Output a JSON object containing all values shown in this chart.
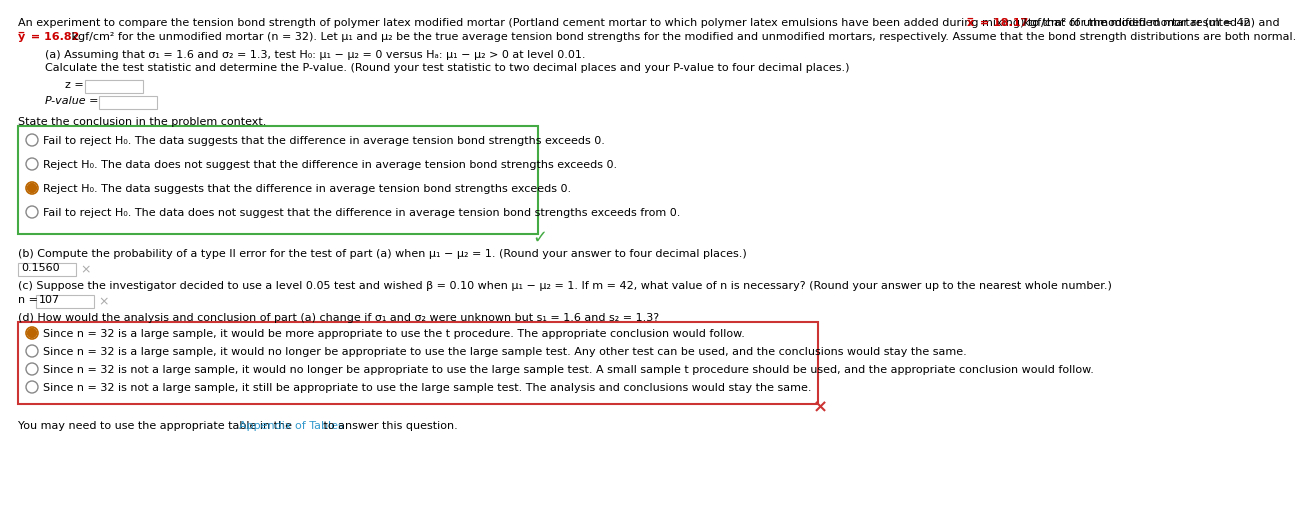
{
  "bg_color": "#ffffff",
  "text_color": "#000000",
  "red_bold": "#cc0000",
  "link_color": "#3399cc",
  "box_green": "#44aa44",
  "box_red": "#cc3333",
  "radio_orange": "#bb6600",
  "radio_gray": "#888888",
  "check_green": "#44aa44",
  "x_red": "#cc3333",
  "x_gray": "#aaaaaa",
  "line1a": "An experiment to compare the tension bond strength of polymer latex modified mortar (Portland cement mortar to which polymer latex emulsions have been added during mixing) to that of unmodified mortar resulted in ",
  "line1b": "x = 18.17",
  "line1c": " kgf/cm² for the modified mortar (m = 42) and",
  "line2a": "y = 16.82",
  "line2b": " kgf/cm² for the unmodified mortar (n = 32). Let μ₁ and μ₂ be the true average tension bond strengths for the modified and unmodified mortars, respectively. Assume that the bond strength distributions are both normal.",
  "part_a1": "(a) Assuming that σ₁ = 1.6 and σ₂ = 1.3, test H₀: μ₁ − μ₂ = 0 versus Hₐ: μ₁ − μ₂ > 0 at level 0.01.",
  "part_a2": "Calculate the test statistic and determine the P-value. (Round your test statistic to two decimal places and your P-value to four decimal places.)",
  "z_label": "z =",
  "pval_label": "P-value =",
  "state_conc": "State the conclusion in the problem context.",
  "opt1": "Fail to reject H₀. The data suggests that the difference in average tension bond strengths exceeds 0.",
  "opt2": "Reject H₀. The data does not suggest that the difference in average tension bond strengths exceeds 0.",
  "opt3": "Reject H₀. The data suggests that the difference in average tension bond strengths exceeds 0.",
  "opt4": "Fail to reject H₀. The data does not suggest that the difference in average tension bond strengths exceeds from 0.",
  "part_b": "(b) Compute the probability of a type II error for the test of part (a) when μ₁ − μ₂ = 1. (Round your answer to four decimal places.)",
  "part_b_ans": "0.1560",
  "part_c": "(c) Suppose the investigator decided to use a level 0.05 test and wished β = 0.10 when μ₁ − μ₂ = 1. If m = 42, what value of n is necessary? (Round your answer up to the nearest whole number.)",
  "part_c_n_label": "n = ",
  "part_c_ans": "107",
  "part_d": "(d) How would the analysis and conclusion of part (a) change if σ₁ and σ₂ were unknown but s₁ = 1.6 and s₂ = 1.3?",
  "opt_d1": "Since n = 32 is a large sample, it would be more appropriate to use the t procedure. The appropriate conclusion would follow.",
  "opt_d2": "Since n = 32 is a large sample, it would no longer be appropriate to use the large sample test. Any other test can be used, and the conclusions would stay the same.",
  "opt_d3": "Since n = 32 is not a large sample, it would no longer be appropriate to use the large sample test. A small sample t procedure should be used, and the appropriate conclusion would follow.",
  "opt_d4": "Since n = 32 is not a large sample, it still be appropriate to use the large sample test. The analysis and conclusions would stay the same.",
  "footer_pre": "You may need to use the appropriate table in the ",
  "footer_link": "Appendix of Tables",
  "footer_post": " to answer this question."
}
